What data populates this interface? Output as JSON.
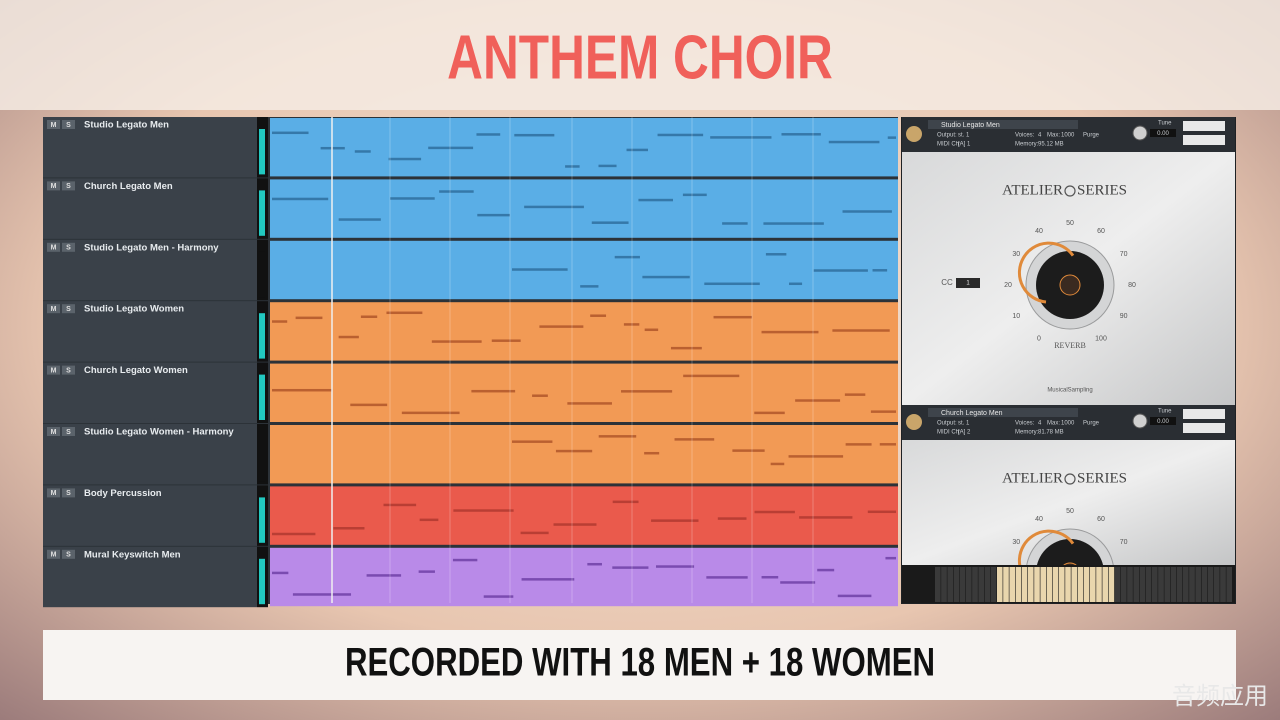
{
  "title": "ANTHEM CHOIR",
  "tracks": [
    "Studio Legato Men",
    "Church Legato Men",
    "Studio Legato Men - Harmony",
    "Studio Legato Women",
    "Church Legato Women",
    "Studio Legato Women - Harmony",
    "Body Percussion",
    "Mural Keyswitch Men"
  ],
  "mute": "M",
  "solo": "S",
  "labels": {
    "output": "Output:",
    "voices": "Voices:",
    "max": "Max:",
    "midi": "MIDI Ch:",
    "memory": "Memory:",
    "purge": "Purge",
    "tune": "Tune"
  },
  "instruments": [
    {
      "name": "Studio Legato Men",
      "output": "st. 1",
      "voices": "4",
      "max": "1000",
      "midi_ch": "[A] 1",
      "memory": "95.12 MB",
      "tune": "0.00"
    },
    {
      "name": "Church Legato Men",
      "output": "st. 1",
      "voices": "4",
      "max": "1000",
      "midi_ch": "[A] 2",
      "memory": "81.78 MB",
      "tune": "0.00"
    }
  ],
  "brand": {
    "left": "ATELIER",
    "right": "SERIES"
  },
  "knob_scale": [
    "0",
    "10",
    "20",
    "30",
    "40",
    "50",
    "60",
    "70",
    "80",
    "90",
    "100"
  ],
  "cc_label": "CC",
  "cc_value": "1",
  "knob_label": "REVERB",
  "maker": "MusicalSampling",
  "caption": "RECORDED WITH 18 MEN + 18 WOMEN",
  "watermark": "音频应用"
}
